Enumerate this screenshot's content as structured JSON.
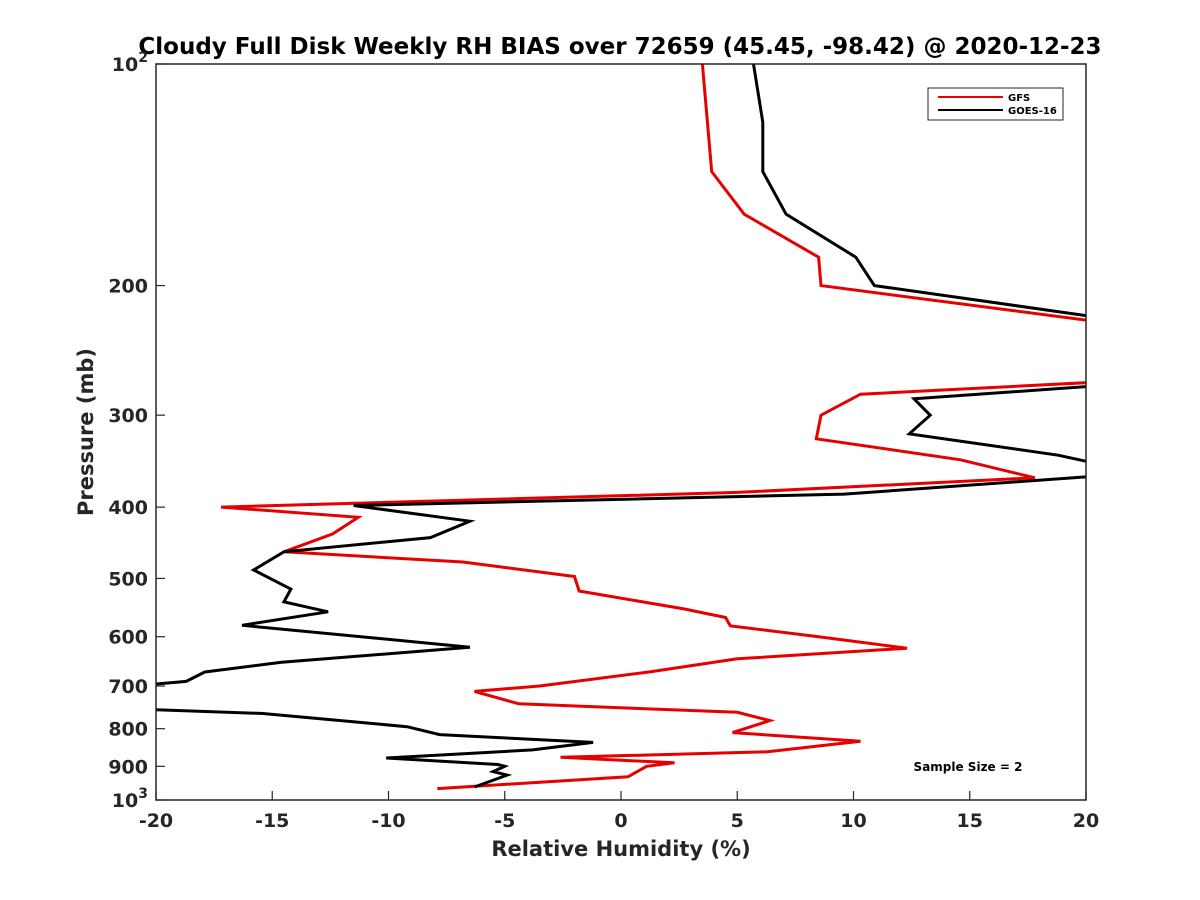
{
  "chart_data": {
    "type": "line",
    "title": "Cloudy Full Disk Weekly RH BIAS over 72659 (45.45, -98.42) @ 2020-12-23",
    "xlabel": "Relative Humidity (%)",
    "ylabel": "Pressure (mb)",
    "xlim": [
      -20,
      20
    ],
    "ylim": [
      100,
      1000
    ],
    "y_scale": "log",
    "y_reversed": true,
    "x_ticks": [
      "-20",
      "-15",
      "-10",
      "-5",
      "0",
      "5",
      "10",
      "15",
      "20"
    ],
    "y_ticks": [
      {
        "value": 100,
        "base": "10",
        "exp": "2"
      },
      {
        "value": 200,
        "base": "200",
        "exp": ""
      },
      {
        "value": 300,
        "base": "300",
        "exp": ""
      },
      {
        "value": 400,
        "base": "400",
        "exp": ""
      },
      {
        "value": 500,
        "base": "500",
        "exp": ""
      },
      {
        "value": 600,
        "base": "600",
        "exp": ""
      },
      {
        "value": 700,
        "base": "700",
        "exp": ""
      },
      {
        "value": 800,
        "base": "800",
        "exp": ""
      },
      {
        "value": 900,
        "base": "900",
        "exp": ""
      },
      {
        "value": 1000,
        "base": "10",
        "exp": "3"
      }
    ],
    "grid": false,
    "legend_position": "top-right",
    "annotation": "Sample Size = 2",
    "series": [
      {
        "name": "GFS",
        "color": "#e60000",
        "points": [
          [
            3.5,
            100
          ],
          [
            3.9,
            140
          ],
          [
            5.3,
            160
          ],
          [
            8.5,
            183
          ],
          [
            8.6,
            200
          ],
          [
            21,
            225
          ],
          [
            null,
            null
          ],
          [
            21,
            270
          ],
          [
            10.3,
            281
          ],
          [
            8.6,
            300
          ],
          [
            8.4,
            323
          ],
          [
            14.6,
            345
          ],
          [
            17.8,
            365
          ],
          [
            5.0,
            382
          ],
          [
            -17.2,
            400
          ],
          [
            -11.3,
            413
          ],
          [
            -12.4,
            435
          ],
          [
            -14.5,
            460
          ],
          [
            -6.8,
            475
          ],
          [
            -2.0,
            497
          ],
          [
            -1.8,
            520
          ],
          [
            2.7,
            550
          ],
          [
            4.5,
            565
          ],
          [
            4.7,
            580
          ],
          [
            8.5,
            600
          ],
          [
            12.3,
            622
          ],
          [
            5.0,
            643
          ],
          [
            1.2,
            670
          ],
          [
            -3.5,
            700
          ],
          [
            -6.3,
            712
          ],
          [
            -4.4,
            740
          ],
          [
            5.0,
            760
          ],
          [
            6.4,
            780
          ],
          [
            4.8,
            810
          ],
          [
            10.3,
            832
          ],
          [
            6.3,
            860
          ],
          [
            -2.6,
            875
          ],
          [
            2.3,
            890
          ],
          [
            1.1,
            900
          ],
          [
            0.3,
            930
          ],
          [
            -7.9,
            965
          ]
        ]
      },
      {
        "name": "GOES-16",
        "color": "#000000",
        "points": [
          [
            5.7,
            100
          ],
          [
            6.1,
            120
          ],
          [
            6.1,
            140
          ],
          [
            7.1,
            160
          ],
          [
            10.1,
            183
          ],
          [
            10.9,
            200
          ],
          [
            21,
            222
          ],
          [
            null,
            null
          ],
          [
            21,
            273
          ],
          [
            12.6,
            285
          ],
          [
            13.3,
            300
          ],
          [
            12.4,
            318
          ],
          [
            18.8,
            340
          ],
          [
            21,
            352
          ],
          [
            21,
            362
          ],
          [
            9.6,
            384
          ],
          [
            -11.5,
            398
          ],
          [
            -6.5,
            418
          ],
          [
            -8.2,
            440
          ],
          [
            -14.5,
            460
          ],
          [
            -15.8,
            487
          ],
          [
            -14.2,
            517
          ],
          [
            -14.5,
            538
          ],
          [
            -12.6,
            555
          ],
          [
            -16.3,
            579
          ],
          [
            -6.5,
            620
          ],
          [
            -14.6,
            650
          ],
          [
            -17.9,
            670
          ],
          [
            -18.7,
            690
          ],
          [
            -21,
            700
          ],
          [
            null,
            null
          ],
          [
            -21,
            752
          ],
          [
            -15.4,
            763
          ],
          [
            -9.2,
            795
          ],
          [
            -7.8,
            815
          ],
          [
            -1.2,
            835
          ],
          [
            -3.8,
            855
          ],
          [
            -10.1,
            877
          ],
          [
            -5.3,
            895
          ],
          [
            -5.0,
            900
          ],
          [
            -5.5,
            915
          ],
          [
            -4.9,
            925
          ],
          [
            -6.3,
            960
          ]
        ]
      }
    ]
  }
}
